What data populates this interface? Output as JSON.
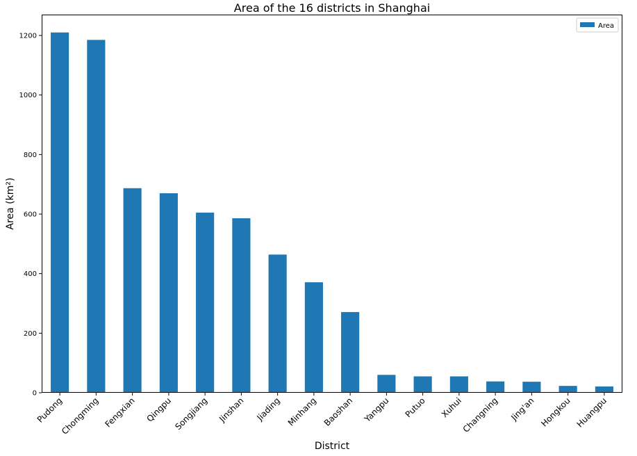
{
  "chart_data": {
    "type": "bar",
    "title": "Area of the 16 districts in Shanghai",
    "xlabel": "District",
    "ylabel": "Area (km²)",
    "categories": [
      "Pudong",
      "Chongming",
      "Fengxian",
      "Qingpu",
      "Songjiang",
      "Jinshan",
      "Jiading",
      "Minhang",
      "Baoshan",
      "Yangpu",
      "Putuo",
      "Xuhui",
      "Changning",
      "Jing'an",
      "Hongkou",
      "Huangpu"
    ],
    "series": [
      {
        "name": "Area",
        "color": "#1f77b4",
        "values": [
          1210,
          1185,
          687,
          670,
          605,
          586,
          464,
          371,
          271,
          60,
          55,
          55,
          38,
          37,
          23,
          21
        ]
      }
    ],
    "ylim": [
      0,
      1270
    ],
    "yticks": [
      0,
      200,
      400,
      600,
      800,
      1000,
      1200
    ],
    "xtick_rotation": 45,
    "grid": false,
    "legend_position": "top-right"
  }
}
